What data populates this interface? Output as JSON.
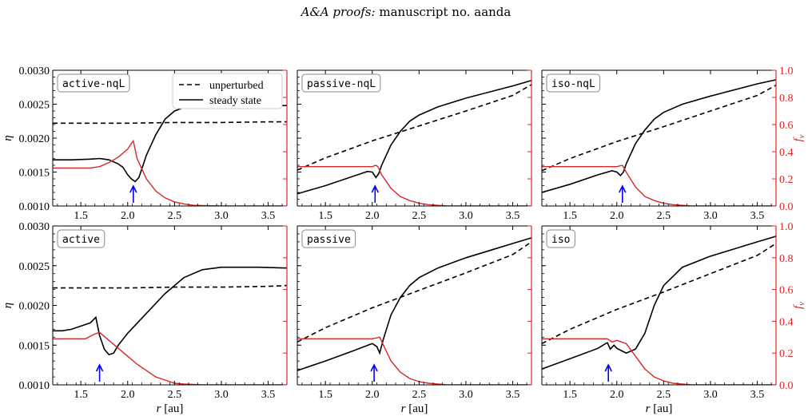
{
  "header": {
    "journal": "A&A proofs:",
    "manuscript": "manuscript no. aanda"
  },
  "colors": {
    "fv_line": "#d62728",
    "arrow": "#0000ff",
    "eta_line": "#000000"
  },
  "chart_data": {
    "type": "line",
    "xlabel": "r [au]",
    "xlabel_italic": "r",
    "xlabel_unit": "[au]",
    "ylabel_left": "η",
    "ylabel_right": "f_v",
    "xlim": [
      1.2,
      3.7
    ],
    "ylim_left": [
      0.001,
      0.003
    ],
    "ylim_right": [
      0.0,
      1.0
    ],
    "xticks": [
      "1.5",
      "2.0",
      "2.5",
      "3.0",
      "3.5"
    ],
    "yticks_left": [
      "0.0010",
      "0.0015",
      "0.0020",
      "0.0025",
      "0.0030"
    ],
    "yticks_right": [
      "0.0",
      "0.2",
      "0.4",
      "0.6",
      "0.8",
      "1.0"
    ],
    "legend": {
      "placement": "top-right of first panel",
      "entries": [
        "unperturbed",
        "steady state"
      ]
    },
    "panels": [
      {
        "label": "active-nqL",
        "arrow_x": 2.06,
        "unperturbed": {
          "x": [
            1.2,
            1.5,
            2.0,
            2.5,
            3.0,
            3.5,
            3.7
          ],
          "y": [
            0.00222,
            0.00222,
            0.00222,
            0.00223,
            0.00223,
            0.00224,
            0.00224
          ]
        },
        "steady_state": {
          "x": [
            1.2,
            1.4,
            1.6,
            1.7,
            1.8,
            1.9,
            1.95,
            2.0,
            2.04,
            2.08,
            2.12,
            2.2,
            2.3,
            2.4,
            2.5,
            2.6,
            2.7,
            3.0,
            3.7
          ],
          "y": [
            0.00168,
            0.00168,
            0.00169,
            0.0017,
            0.00168,
            0.00162,
            0.00157,
            0.00146,
            0.0014,
            0.00136,
            0.00142,
            0.00175,
            0.00205,
            0.00228,
            0.0024,
            0.00245,
            0.00247,
            0.00248,
            0.00248
          ]
        },
        "fv": {
          "x": [
            1.2,
            1.6,
            1.7,
            1.8,
            1.9,
            2.0,
            2.04,
            2.06,
            2.1,
            2.2,
            2.3,
            2.4,
            2.5,
            2.6,
            2.7,
            3.0,
            3.7
          ],
          "y": [
            0.28,
            0.28,
            0.29,
            0.32,
            0.36,
            0.42,
            0.46,
            0.48,
            0.35,
            0.2,
            0.11,
            0.06,
            0.03,
            0.015,
            0.005,
            0.0,
            0.0
          ]
        }
      },
      {
        "label": "passive-nqL",
        "arrow_x": 2.03,
        "unperturbed": {
          "x": [
            1.2,
            1.5,
            2.0,
            2.5,
            3.0,
            3.5,
            3.7
          ],
          "y": [
            0.00153,
            0.00171,
            0.00196,
            0.00218,
            0.0024,
            0.00263,
            0.00279
          ]
        },
        "steady_state": {
          "x": [
            1.2,
            1.5,
            1.8,
            1.95,
            2.0,
            2.04,
            2.07,
            2.1,
            2.2,
            2.3,
            2.4,
            2.5,
            2.7,
            3.0,
            3.5,
            3.7
          ],
          "y": [
            0.00118,
            0.0013,
            0.00144,
            0.00151,
            0.0015,
            0.00142,
            0.00148,
            0.0016,
            0.0019,
            0.0021,
            0.00225,
            0.00234,
            0.00246,
            0.00259,
            0.00277,
            0.00285
          ]
        },
        "fv": {
          "x": [
            1.2,
            1.9,
            2.0,
            2.04,
            2.06,
            2.1,
            2.2,
            2.3,
            2.4,
            2.5,
            2.6,
            2.8,
            3.0,
            3.7
          ],
          "y": [
            0.29,
            0.29,
            0.29,
            0.3,
            0.29,
            0.23,
            0.13,
            0.07,
            0.04,
            0.02,
            0.01,
            0.0,
            0.0,
            0.0
          ]
        }
      },
      {
        "label": "iso-nqL",
        "arrow_x": 2.06,
        "unperturbed": {
          "x": [
            1.2,
            1.5,
            2.0,
            2.5,
            3.0,
            3.5,
            3.7
          ],
          "y": [
            0.00152,
            0.0017,
            0.00195,
            0.00217,
            0.0024,
            0.00263,
            0.00278
          ]
        },
        "steady_state": {
          "x": [
            1.2,
            1.5,
            1.8,
            1.95,
            2.0,
            2.04,
            2.07,
            2.1,
            2.2,
            2.3,
            2.4,
            2.5,
            2.7,
            3.0,
            3.5,
            3.7
          ],
          "y": [
            0.0012,
            0.00132,
            0.00146,
            0.00152,
            0.0015,
            0.00145,
            0.0015,
            0.00162,
            0.00192,
            0.00212,
            0.00228,
            0.00238,
            0.0025,
            0.00262,
            0.0028,
            0.00286
          ]
        },
        "fv": {
          "x": [
            1.2,
            1.9,
            2.0,
            2.06,
            2.1,
            2.2,
            2.3,
            2.4,
            2.5,
            2.6,
            2.8,
            3.0,
            3.7
          ],
          "y": [
            0.29,
            0.29,
            0.29,
            0.3,
            0.25,
            0.14,
            0.07,
            0.04,
            0.02,
            0.01,
            0.0,
            0.0,
            0.0
          ]
        }
      },
      {
        "label": "active",
        "arrow_x": 1.7,
        "unperturbed": {
          "x": [
            1.2,
            1.5,
            2.0,
            2.5,
            3.0,
            3.5,
            3.7
          ],
          "y": [
            0.00222,
            0.00222,
            0.00222,
            0.00223,
            0.00223,
            0.00224,
            0.00225
          ]
        },
        "steady_state": {
          "x": [
            1.2,
            1.3,
            1.4,
            1.5,
            1.6,
            1.66,
            1.7,
            1.75,
            1.8,
            1.85,
            1.9,
            2.0,
            2.2,
            2.4,
            2.6,
            2.8,
            3.0,
            3.4,
            3.7
          ],
          "y": [
            0.00168,
            0.00168,
            0.0017,
            0.00174,
            0.00178,
            0.00185,
            0.00162,
            0.00145,
            0.00138,
            0.0014,
            0.0015,
            0.00165,
            0.0019,
            0.00215,
            0.00235,
            0.00245,
            0.00248,
            0.00248,
            0.00247
          ]
        },
        "fv": {
          "x": [
            1.2,
            1.55,
            1.65,
            1.7,
            1.8,
            1.9,
            2.0,
            2.1,
            2.2,
            2.3,
            2.4,
            2.5,
            2.6,
            2.8,
            3.7
          ],
          "y": [
            0.29,
            0.29,
            0.32,
            0.33,
            0.28,
            0.23,
            0.18,
            0.13,
            0.09,
            0.05,
            0.03,
            0.01,
            0.005,
            0.0,
            0.0
          ]
        }
      },
      {
        "label": "passive",
        "arrow_x": 2.02,
        "unperturbed": {
          "x": [
            1.2,
            1.5,
            2.0,
            2.5,
            3.0,
            3.5,
            3.7
          ],
          "y": [
            0.00154,
            0.00172,
            0.00197,
            0.00219,
            0.00241,
            0.00264,
            0.0028
          ]
        },
        "steady_state": {
          "x": [
            1.2,
            1.5,
            1.8,
            2.0,
            2.05,
            2.08,
            2.12,
            2.2,
            2.3,
            2.4,
            2.5,
            2.7,
            3.0,
            3.5,
            3.7
          ],
          "y": [
            0.00118,
            0.0013,
            0.00143,
            0.00152,
            0.00148,
            0.0014,
            0.00158,
            0.00188,
            0.0021,
            0.00225,
            0.00235,
            0.00247,
            0.0026,
            0.00278,
            0.00285
          ]
        },
        "fv": {
          "x": [
            1.2,
            1.9,
            2.0,
            2.08,
            2.12,
            2.2,
            2.3,
            2.4,
            2.5,
            2.6,
            2.8,
            3.0,
            3.7
          ],
          "y": [
            0.29,
            0.29,
            0.29,
            0.3,
            0.25,
            0.15,
            0.08,
            0.04,
            0.02,
            0.01,
            0.0,
            0.0,
            0.0
          ]
        }
      },
      {
        "label": "iso",
        "arrow_x": 1.91,
        "unperturbed": {
          "x": [
            1.2,
            1.5,
            2.0,
            2.5,
            3.0,
            3.5,
            3.7
          ],
          "y": [
            0.00152,
            0.0017,
            0.00195,
            0.00217,
            0.0024,
            0.00263,
            0.00278
          ]
        },
        "steady_state": {
          "x": [
            1.2,
            1.5,
            1.8,
            1.88,
            1.9,
            1.93,
            1.97,
            2.0,
            2.1,
            2.2,
            2.3,
            2.4,
            2.5,
            2.7,
            3.0,
            3.5,
            3.7
          ],
          "y": [
            0.0012,
            0.00133,
            0.00146,
            0.00152,
            0.00153,
            0.00145,
            0.0015,
            0.00146,
            0.0014,
            0.00145,
            0.00165,
            0.002,
            0.00225,
            0.00248,
            0.00262,
            0.0028,
            0.00287
          ]
        },
        "fv": {
          "x": [
            1.2,
            1.85,
            1.9,
            1.95,
            2.0,
            2.1,
            2.2,
            2.3,
            2.4,
            2.5,
            2.6,
            2.8,
            3.0,
            3.7
          ],
          "y": [
            0.29,
            0.29,
            0.29,
            0.27,
            0.28,
            0.26,
            0.18,
            0.1,
            0.05,
            0.025,
            0.01,
            0.0,
            0.0,
            0.0
          ]
        }
      }
    ]
  }
}
